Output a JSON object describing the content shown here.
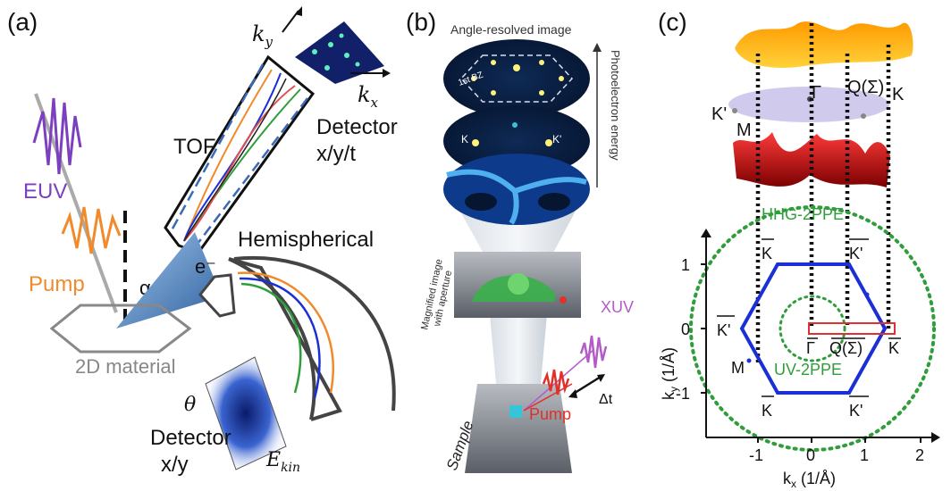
{
  "panel_a": {
    "label": "(a)",
    "ky": "k",
    "ky_sub": "y",
    "kx": "k",
    "kx_sub": "x",
    "tof": "TOF",
    "detector_top_1": "Detector",
    "detector_top_2": "x/y/t",
    "euv": "EUV",
    "pump": "Pump",
    "alpha": "α",
    "electron": "e⁻",
    "hemispherical": "Hemispherical",
    "material": "2D material",
    "theta": "θ",
    "ekin": "E",
    "ekin_sub": "kin",
    "detector_bottom_1": "Detector",
    "detector_bottom_2": "x/y"
  },
  "panel_b": {
    "label": "(b)",
    "angle_resolved": "Angle-resolved image",
    "first_bz": "1st BZ",
    "k": "K",
    "kprime": "K'",
    "photoelectron_energy": "Photoelectron energy",
    "magnified": "Magnified image",
    "with_aperture": "with aperture",
    "xuv": "XUV",
    "pump": "Pump",
    "delta_t": "Δt",
    "sample": "Sample"
  },
  "panel_c": {
    "label": "(c)",
    "kprime_top": "K'",
    "gamma_top": "Γ",
    "q_top": "Q(Σ)",
    "k_top": "K",
    "m_top": "M",
    "hhg": "HHG-2PPE",
    "uv": "UV-2PPE",
    "k_upper_left": "K",
    "kprime_upper_right": "K'",
    "kprime_left": "K'",
    "gamma": "Γ",
    "q": "Q(Σ)",
    "k_right": "K",
    "m": "M",
    "k_lower_left": "K",
    "kprime_lower_right": "K'",
    "ylabel": "k",
    "ylabel_sub": "y",
    "ylabel_unit": " (1/Å)",
    "xlabel": "k",
    "xlabel_sub": "x",
    "xlabel_unit": " (1/Å)",
    "yticks": [
      "1",
      "0",
      "-1"
    ],
    "xticks": [
      "-1",
      "0",
      "1",
      "2"
    ]
  },
  "colors": {
    "euv": "#7b3fbf",
    "pump": "#f08a2a",
    "hhg": "#2f9e3a",
    "hexagon": "#1a2fd6",
    "red_rect": "#e03030",
    "xuv": "#b35cc8",
    "pump_b": "#e0302a"
  }
}
